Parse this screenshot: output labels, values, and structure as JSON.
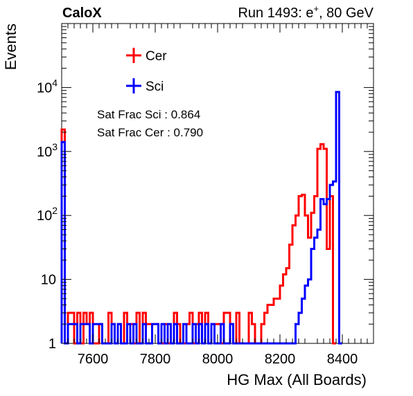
{
  "header": {
    "experiment": "CaloX",
    "run_text": "Run 1493: e",
    "run_sup": "+",
    "run_suffix": ", 80 GeV"
  },
  "stats": {
    "sci": "Sat Frac Sci : 0.864",
    "cer": "Sat Frac Cer : 0.790"
  },
  "chart_data": {
    "type": "histogram",
    "xlabel": "HG Max (All Boards)",
    "ylabel": "Events",
    "xlim": [
      7500,
      8500
    ],
    "ylim": [
      1,
      100000
    ],
    "yscale": "log",
    "bin_width": 10,
    "x_ticks": [
      7600,
      7800,
      8000,
      8200,
      8400
    ],
    "x_tick_labels": [
      "7600",
      "7800",
      "8000",
      "8200",
      "8400"
    ],
    "y_ticks": [
      1,
      10,
      100,
      1000,
      10000
    ],
    "y_tick_labels": [
      {
        "base": "1",
        "exp": ""
      },
      {
        "base": "10",
        "exp": ""
      },
      {
        "base": "10",
        "exp": "2"
      },
      {
        "base": "10",
        "exp": "3"
      },
      {
        "base": "10",
        "exp": "4"
      }
    ],
    "legend_position": "top-left",
    "series": [
      {
        "name": "Cer",
        "color": "#ff0000",
        "bins_start": 7500,
        "values": [
          2200,
          1,
          3,
          3,
          1,
          3,
          1,
          3,
          2,
          3,
          1,
          1,
          2,
          1,
          1,
          3,
          2,
          1,
          2,
          1,
          3,
          2,
          2,
          1,
          3,
          1,
          3,
          2,
          2,
          2,
          2,
          1,
          1,
          2,
          1,
          1,
          3,
          2,
          1,
          1,
          2,
          3,
          1,
          2,
          3,
          1,
          3,
          1,
          2,
          2,
          2,
          1,
          3,
          3,
          2,
          1,
          3,
          1,
          1,
          1,
          3,
          2,
          1,
          1,
          2,
          3,
          4,
          4,
          5,
          5,
          8,
          12,
          15,
          35,
          70,
          100,
          200,
          210,
          100,
          45,
          110,
          200,
          1100,
          1300,
          1100,
          30,
          200,
          0
        ]
      },
      {
        "name": "Sci",
        "color": "#0000ff",
        "bins_start": 7500,
        "values": [
          1400,
          1,
          2,
          2,
          2,
          1,
          2,
          2,
          2,
          1,
          2,
          2,
          2,
          1,
          1,
          1,
          2,
          1,
          2,
          1,
          1,
          2,
          1,
          2,
          1,
          1,
          2,
          1,
          1,
          2,
          2,
          1,
          2,
          1,
          2,
          1,
          2,
          1,
          1,
          2,
          1,
          1,
          2,
          1,
          2,
          1,
          2,
          1,
          2,
          1,
          1,
          2,
          1,
          1,
          2,
          1,
          1,
          1,
          1,
          1,
          1,
          1,
          1,
          1,
          1,
          1,
          1,
          1,
          1,
          1,
          1,
          1,
          1,
          1,
          1,
          2,
          3,
          5,
          8,
          10,
          30,
          45,
          60,
          180,
          150,
          180,
          300,
          340,
          8500,
          0
        ]
      }
    ]
  }
}
